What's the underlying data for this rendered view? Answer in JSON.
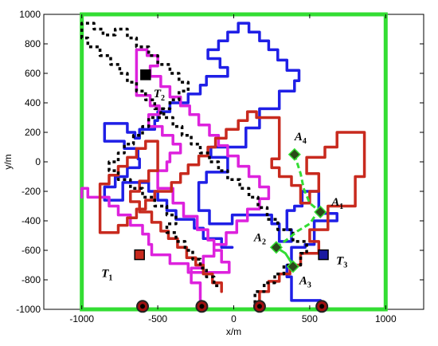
{
  "chart_data": {
    "type": "line",
    "title": "",
    "xlabel": "x/m",
    "ylabel": "y/m",
    "xlim": [
      -1250,
      1250
    ],
    "ylim": [
      -1000,
      1000
    ],
    "x_ticks": [
      -1000,
      -500,
      0,
      500,
      1000
    ],
    "y_ticks": [
      -1000,
      -800,
      -600,
      -400,
      -200,
      0,
      200,
      400,
      600,
      800,
      1000
    ],
    "grid": false,
    "boundary": {
      "x": [
        -1000,
        1000
      ],
      "y": [
        -1000,
        1000
      ],
      "color": "#33dd33"
    },
    "series": [
      {
        "color": "#1f1fe6",
        "style": "solid",
        "x": [
          570,
          570,
          380,
          380,
          350,
          350,
          380,
          380,
          470,
          470,
          530,
          530,
          680,
          680,
          560,
          560,
          560,
          500,
          450,
          450,
          400,
          400,
          350,
          350,
          380,
          380,
          300,
          300,
          250,
          250,
          -10,
          -10,
          -160,
          -160,
          -230,
          -230,
          -180,
          -180,
          -40,
          -40,
          -150,
          -150,
          80,
          80,
          170,
          170,
          300,
          300,
          400,
          400,
          430,
          430,
          350,
          350,
          290,
          290,
          230,
          230,
          170,
          170,
          100,
          100,
          30,
          30,
          -40,
          -40,
          -100,
          -100,
          -170,
          -170,
          -90,
          -90,
          -40,
          -40,
          -180,
          -180,
          -220,
          -220,
          -300,
          -300,
          -420,
          -420,
          -500,
          -500,
          -520,
          -520,
          -620,
          -620,
          -650,
          -650,
          -700,
          -700,
          -850,
          -850,
          -720,
          -720,
          -630,
          -630,
          -620,
          -620,
          -700,
          -700,
          -780,
          -780,
          -850,
          -850,
          -730,
          -730,
          -560,
          -560,
          -500,
          -500,
          -440,
          -440,
          -380,
          -380,
          -260,
          -260,
          -200,
          -200,
          -80,
          -80,
          -10
        ],
        "y": [
          -970,
          -940,
          -940,
          -780,
          -780,
          -700,
          -700,
          -580,
          -580,
          -560,
          -560,
          -400,
          -400,
          -350,
          -350,
          -310,
          -200,
          -200,
          -200,
          -300,
          -300,
          -330,
          -330,
          -460,
          -460,
          -540,
          -540,
          -420,
          -420,
          -360,
          -360,
          -420,
          -420,
          -330,
          -330,
          -140,
          -140,
          -70,
          -70,
          30,
          30,
          100,
          100,
          230,
          230,
          360,
          360,
          480,
          480,
          550,
          550,
          620,
          620,
          690,
          690,
          760,
          760,
          820,
          820,
          880,
          880,
          940,
          940,
          880,
          880,
          820,
          820,
          760,
          760,
          700,
          700,
          640,
          640,
          580,
          580,
          520,
          520,
          460,
          460,
          400,
          400,
          340,
          340,
          280,
          280,
          220,
          220,
          160,
          160,
          200,
          200,
          260,
          260,
          140,
          140,
          90,
          90,
          20,
          20,
          -40,
          -40,
          -100,
          -100,
          -170,
          -170,
          -260,
          -260,
          -140,
          -140,
          -200,
          -200,
          -260,
          -260,
          -330,
          -330,
          -390,
          -390,
          -450,
          -450,
          -520,
          -520,
          -580,
          -580
        ]
      },
      {
        "color": "#dd22dd",
        "style": "solid",
        "x": [
          -220,
          -220,
          -280,
          -280,
          -200,
          -200,
          -130,
          -130,
          -50,
          -50,
          20,
          20,
          90,
          90,
          170,
          170,
          230,
          230,
          170,
          170,
          100,
          100,
          30,
          30,
          -40,
          -40,
          -100,
          -100,
          -160,
          -160,
          -230,
          -230,
          -290,
          -290,
          -350,
          -350,
          -420,
          -420,
          -480,
          -480,
          -550,
          -550,
          -500,
          -500,
          -570,
          -570,
          -640,
          -640,
          -550,
          -550,
          -490,
          -490,
          -560,
          -560,
          -470,
          -470,
          -400,
          -400,
          -350,
          -350,
          -420,
          -420,
          -440,
          -440,
          -500,
          -500,
          -400,
          -400,
          -330,
          -330,
          -240,
          -240,
          -170,
          -170,
          -130,
          -130,
          -80,
          -80,
          -30,
          -30,
          -300,
          -300,
          -420,
          -420,
          -540,
          -540,
          -560,
          -560,
          -600,
          -600,
          -680,
          -680,
          -760,
          -760,
          -820,
          -820,
          -960,
          -960,
          -1000,
          -1000
        ],
        "y": [
          -970,
          -820,
          -820,
          -720,
          -720,
          -640,
          -640,
          -560,
          -560,
          -480,
          -480,
          -400,
          -400,
          -320,
          -320,
          -250,
          -250,
          -170,
          -170,
          -100,
          -100,
          -30,
          -30,
          40,
          40,
          110,
          110,
          180,
          180,
          250,
          250,
          320,
          320,
          380,
          380,
          440,
          440,
          510,
          510,
          580,
          580,
          650,
          650,
          720,
          720,
          760,
          760,
          450,
          450,
          380,
          380,
          320,
          320,
          240,
          240,
          180,
          180,
          120,
          120,
          60,
          60,
          0,
          0,
          -60,
          -60,
          -180,
          -180,
          -280,
          -280,
          -370,
          -370,
          -460,
          -460,
          -530,
          -530,
          -600,
          -600,
          -680,
          -680,
          -750,
          -750,
          -690,
          -690,
          -630,
          -630,
          -560,
          -560,
          -490,
          -490,
          -430,
          -430,
          -360,
          -360,
          -300,
          -300,
          -240,
          -240,
          -180,
          -180,
          -240
        ]
      },
      {
        "color": "#c82a1e",
        "style": "solid",
        "x": [
          170,
          170,
          230,
          230,
          300,
          300,
          370,
          370,
          440,
          440,
          560,
          560,
          500,
          500,
          620,
          620,
          800,
          800,
          860,
          860,
          680,
          680,
          600,
          600,
          480,
          480,
          560,
          560,
          500,
          500,
          440,
          440,
          380,
          380,
          300,
          300,
          250,
          250,
          300,
          300,
          150,
          150,
          90,
          90,
          30,
          30,
          -50,
          -50,
          -120,
          -120,
          -170,
          -170,
          -230,
          -230,
          -300,
          -300,
          -350,
          -350,
          -410,
          -410,
          -520,
          -520,
          -580,
          -580,
          -640,
          -640,
          -700,
          -700,
          -760,
          -760,
          -880,
          -880,
          -820,
          -820,
          -760,
          -760,
          -700,
          -700,
          -640,
          -640,
          -580,
          -580,
          -500,
          -500,
          -560,
          -560,
          -620,
          -620,
          -680,
          -680,
          -620,
          -620,
          -540,
          -540,
          -480,
          -480,
          -430,
          -430,
          -370,
          -370,
          -310,
          -310,
          -250,
          -250,
          -200,
          -200,
          -140,
          -140,
          -80,
          -80
        ],
        "y": [
          -970,
          -880,
          -880,
          -810,
          -810,
          -760,
          -760,
          -700,
          -700,
          -620,
          -620,
          -540,
          -540,
          -460,
          -460,
          -300,
          -300,
          -100,
          -100,
          200,
          200,
          100,
          100,
          30,
          30,
          -80,
          -80,
          -200,
          -200,
          -280,
          -280,
          -160,
          -160,
          -100,
          -100,
          -40,
          -40,
          20,
          20,
          300,
          300,
          340,
          340,
          280,
          280,
          220,
          220,
          160,
          160,
          100,
          100,
          40,
          40,
          -20,
          -20,
          -80,
          -80,
          -140,
          -140,
          -200,
          -200,
          -260,
          -260,
          -320,
          -320,
          -380,
          -380,
          -430,
          -430,
          -480,
          -480,
          -150,
          -150,
          -90,
          -90,
          -30,
          -30,
          30,
          30,
          90,
          90,
          140,
          140,
          -60,
          -60,
          -130,
          -130,
          -200,
          -200,
          -270,
          -270,
          -340,
          -340,
          -410,
          -410,
          -470,
          -470,
          -520,
          -520,
          -580,
          -580,
          -650,
          -650,
          -700,
          -700,
          -760,
          -760,
          -820,
          -820,
          -880
        ]
      },
      {
        "color": "#000000",
        "style": "dotted",
        "x": [
          140,
          140,
          200,
          200,
          270,
          270,
          330,
          330,
          440,
          440,
          480,
          480,
          390,
          390,
          290,
          290,
          220,
          220,
          160,
          160,
          100,
          100,
          40,
          40,
          -40,
          -40,
          -100,
          -100,
          -160,
          -160,
          -220,
          -220,
          -280,
          -280,
          -340,
          -340,
          -400,
          -400,
          -460,
          -460,
          -520,
          -520,
          -580,
          -580,
          -640,
          -640,
          -700,
          -700,
          -750,
          -750,
          -810,
          -810,
          -880,
          -880,
          -960,
          -960,
          -1000,
          -1000,
          -920,
          -920,
          -860,
          -860,
          -780,
          -780,
          -700,
          -700,
          -640,
          -640,
          -560,
          -560,
          -500,
          -500,
          -420,
          -420,
          -360,
          -360,
          -300,
          -300,
          -360,
          -360,
          -420,
          -420,
          -480,
          -480,
          -560,
          -560,
          -600,
          -600,
          -660,
          -660,
          -720,
          -720,
          -760,
          -760,
          -820,
          -820,
          -760,
          -760,
          -680,
          -680,
          -600,
          -600,
          -520,
          -520,
          -440,
          -440,
          -380,
          -380,
          -440,
          -440,
          -380,
          -380,
          -320,
          -320,
          -270,
          -270,
          -220,
          -220,
          -180,
          -180,
          -130,
          -130,
          -80
        ],
        "y": [
          -960,
          -880,
          -880,
          -820,
          -820,
          -760,
          -760,
          -700,
          -700,
          -620,
          -620,
          -540,
          -540,
          -460,
          -460,
          -390,
          -390,
          -310,
          -310,
          -240,
          -240,
          -180,
          -180,
          -120,
          -120,
          -60,
          -60,
          0,
          0,
          60,
          60,
          120,
          120,
          180,
          180,
          240,
          240,
          300,
          300,
          360,
          360,
          420,
          420,
          480,
          480,
          540,
          540,
          600,
          600,
          660,
          660,
          720,
          720,
          780,
          780,
          840,
          840,
          940,
          940,
          900,
          900,
          860,
          860,
          900,
          900,
          840,
          840,
          780,
          780,
          720,
          720,
          660,
          660,
          600,
          600,
          540,
          540,
          480,
          480,
          420,
          420,
          360,
          360,
          300,
          300,
          240,
          240,
          180,
          180,
          120,
          120,
          60,
          60,
          0,
          0,
          -60,
          -60,
          -120,
          -120,
          -180,
          -180,
          -240,
          -240,
          -300,
          -300,
          -360,
          -360,
          -420,
          -420,
          -480,
          -480,
          -540,
          -540,
          -600,
          -600,
          -660,
          -660,
          -720,
          -720,
          -780,
          -780,
          -840,
          -840
        ]
      },
      {
        "color": "#33dd33",
        "style": "dashed",
        "x": [
          400,
          440,
          460,
          500,
          560
        ],
        "y": [
          50,
          -80,
          -180,
          -280,
          -330
        ]
      },
      {
        "color": "#33dd33",
        "style": "dashed",
        "x": [
          280,
          360,
          420,
          500,
          560
        ],
        "y": [
          -580,
          -520,
          -470,
          -420,
          -330
        ]
      },
      {
        "color": "#33dd33",
        "style": "solid",
        "x": [
          280,
          340,
          390
        ],
        "y": [
          -580,
          -620,
          -700
        ]
      }
    ],
    "start_points": [
      {
        "x": -600,
        "y": -980,
        "color": "#a01010"
      },
      {
        "x": -210,
        "y": -980,
        "color": "#a01010"
      },
      {
        "x": 170,
        "y": -980,
        "color": "#a01010"
      },
      {
        "x": 580,
        "y": -980,
        "color": "#a01010"
      }
    ],
    "agents": [
      {
        "id": "A4",
        "main": "A",
        "sub": "4",
        "x": 400,
        "y": 50,
        "dx": 0,
        "dy": -18
      },
      {
        "id": "A1",
        "main": "A",
        "sub": "1",
        "x": 570,
        "y": -340,
        "dx": 14,
        "dy": -8
      },
      {
        "id": "A2",
        "main": "A",
        "sub": "2",
        "x": 280,
        "y": -580,
        "dx": -28,
        "dy": -8
      },
      {
        "id": "A3",
        "main": "A",
        "sub": "3",
        "x": 390,
        "y": -710,
        "dx": 8,
        "dy": 22
      }
    ],
    "targets": [
      {
        "id": "T1",
        "main": "T",
        "sub": "1",
        "x": -620,
        "y": -630,
        "color": "#c82a1e",
        "dx": -48,
        "dy": 28
      },
      {
        "id": "T2",
        "main": "T",
        "sub": "2",
        "x": -580,
        "y": 590,
        "color": "#000000",
        "dx": 10,
        "dy": 28
      },
      {
        "id": "T3",
        "main": "T",
        "sub": "3",
        "x": 590,
        "y": -630,
        "color": "#1a1aa0",
        "dx": 16,
        "dy": 12
      }
    ]
  }
}
